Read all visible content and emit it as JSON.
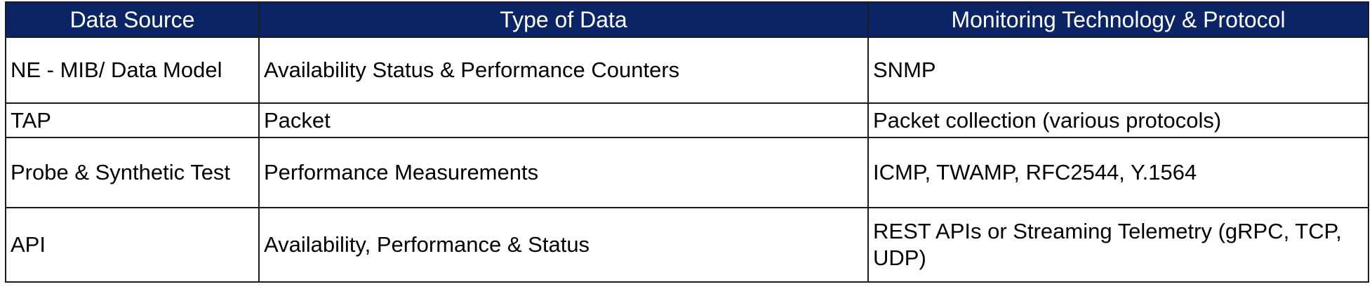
{
  "table": {
    "headers": [
      "Data Source",
      "Type of Data",
      "Monitoring Technology & Protocol"
    ],
    "rows": [
      [
        "NE - MIB/ Data Model",
        "Availability Status & Performance Counters",
        "SNMP"
      ],
      [
        "TAP",
        "Packet",
        "Packet collection (various protocols)"
      ],
      [
        "Probe & Synthetic Test",
        "Performance Measurements",
        "ICMP, TWAMP, RFC2544, Y.1564"
      ],
      [
        "API",
        "Availability, Performance & Status",
        "REST APIs or Streaming Telemetry (gRPC, TCP, UDP)"
      ]
    ]
  },
  "colors": {
    "header_background": "#0b2466",
    "header_text": "#ffffff",
    "border": "#1c1c1c"
  }
}
